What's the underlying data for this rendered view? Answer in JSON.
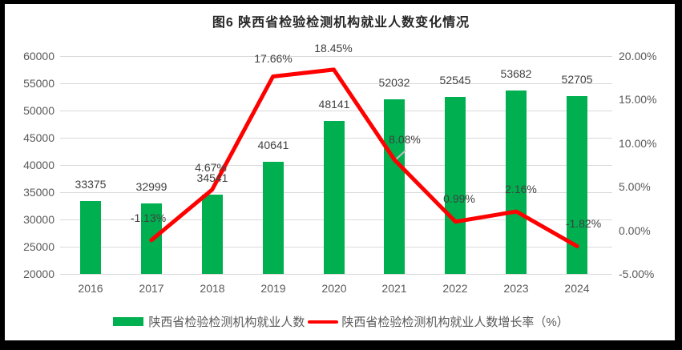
{
  "chart_data": {
    "type": "bar+line",
    "title": "图6 陕西省检验检测机构就业人数变化情况",
    "categories": [
      "2016",
      "2017",
      "2018",
      "2019",
      "2020",
      "2021",
      "2022",
      "2023",
      "2024"
    ],
    "series": [
      {
        "name": "陕西省检验检测机构就业人数",
        "type": "bar",
        "axis": "left",
        "color": "#00b050",
        "values": [
          33375,
          32999,
          34541,
          40641,
          48141,
          52032,
          52545,
          53682,
          52705
        ],
        "labels": [
          "33375",
          "32999",
          "34541",
          "40641",
          "48141",
          "52032",
          "52545",
          "53682",
          "52705"
        ]
      },
      {
        "name": "陕西省检验检测机构就业人数增长率（%）",
        "type": "line",
        "axis": "right",
        "color": "#ff0000",
        "values": [
          null,
          -1.13,
          4.67,
          17.66,
          18.45,
          8.08,
          0.99,
          2.16,
          -1.82
        ],
        "labels": [
          "",
          "-1.13%",
          "4.67%",
          "17.66%",
          "18.45%",
          "8.08%",
          "0.99%",
          "2.16%",
          "-1.82%"
        ]
      }
    ],
    "left_axis": {
      "min": 20000,
      "max": 60000,
      "step": 5000,
      "ticks": [
        "60000",
        "55000",
        "50000",
        "45000",
        "40000",
        "35000",
        "30000",
        "25000",
        "20000"
      ]
    },
    "right_axis": {
      "min": -5,
      "max": 20,
      "step": 5,
      "ticks": [
        "20.00%",
        "15.00%",
        "10.00%",
        "5.00%",
        "0.00%",
        "-5.00%"
      ]
    },
    "grid": true,
    "legend_position": "bottom",
    "legend": [
      "陕西省检验检测机构就业人数",
      "陕西省检验检测机构就业人数增长率（%）"
    ]
  },
  "colors": {
    "bar": "#00b050",
    "line": "#ff0000",
    "gridline": "#d9d9d9",
    "axis_text": "#595959",
    "data_label": "#404040",
    "title_text": "#262626",
    "background": "#ffffff",
    "frame": "#000000"
  }
}
